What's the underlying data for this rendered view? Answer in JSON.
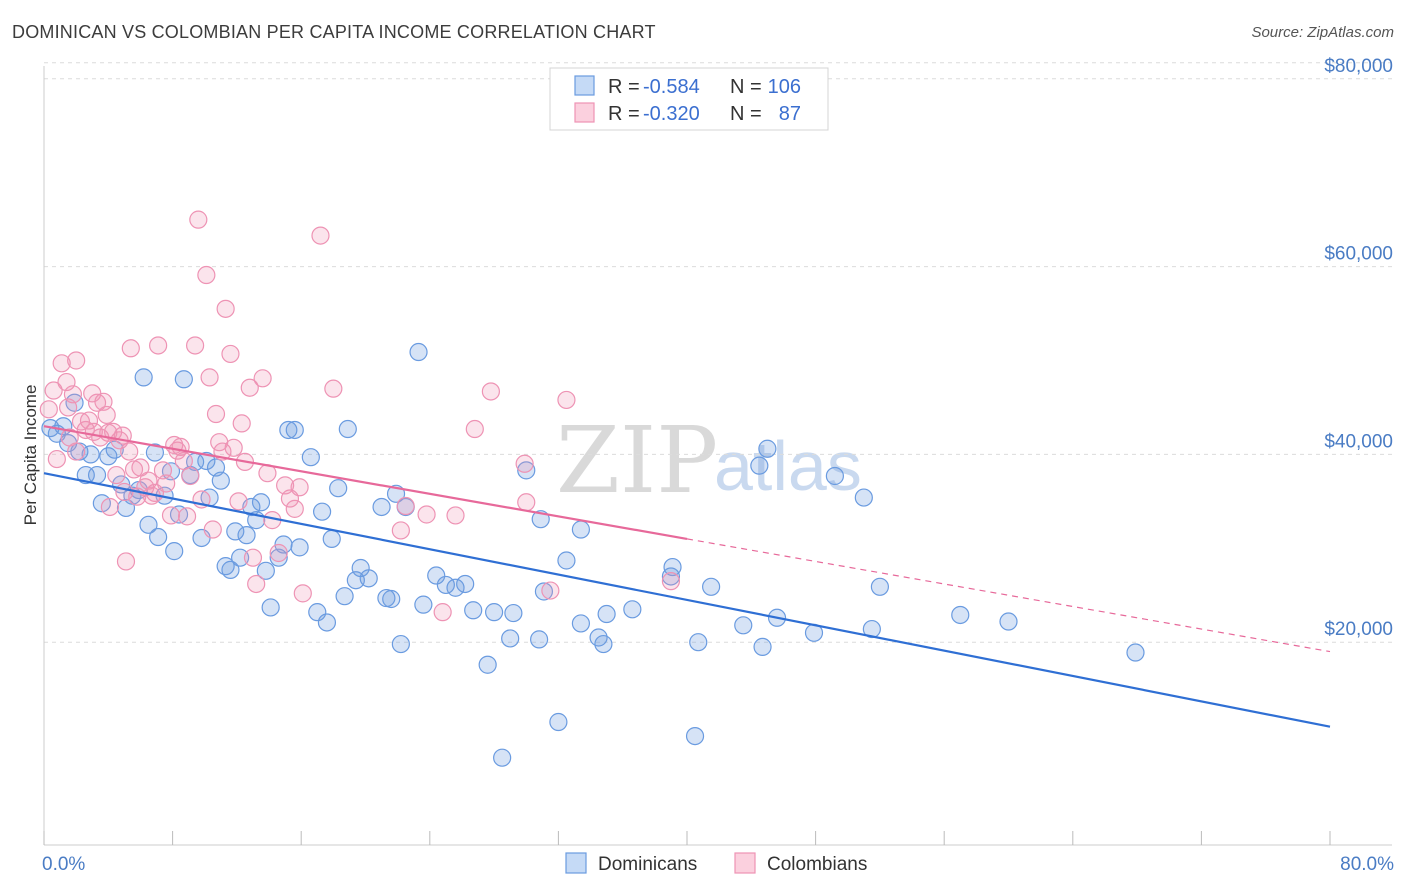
{
  "header": {
    "title": "DOMINICAN VS COLOMBIAN PER CAPITA INCOME CORRELATION CHART",
    "source": "Source: ZipAtlas.com"
  },
  "watermark": {
    "zip": "ZIP",
    "atlas": "atlas"
  },
  "legend": {
    "rows": [
      {
        "r_label": "R = ",
        "r_value": "-0.584",
        "n_label": "N = ",
        "n_value": "106"
      },
      {
        "r_label": "R = ",
        "r_value": "-0.320",
        "n_label": "N = ",
        "n_value": "87"
      }
    ]
  },
  "bottom_legend": {
    "items": [
      "Dominicans",
      "Colombians"
    ]
  },
  "chart_data": {
    "type": "scatter",
    "ylabel": "Per Capita Income",
    "xlim": [
      0,
      80
    ],
    "ylim": [
      0,
      82000
    ],
    "x_tick_labels": {
      "min": "0.0%",
      "max": "80.0%"
    },
    "y_ticks": [
      {
        "value": 20000,
        "label": "$20,000"
      },
      {
        "value": 40000,
        "label": "$40,000"
      },
      {
        "value": 60000,
        "label": "$60,000"
      },
      {
        "value": 80000,
        "label": "$80,000"
      }
    ],
    "grid": true,
    "colors": {
      "dominicans": "#6a9be0",
      "colombians": "#ee93b4",
      "dom_line": "#2f6fd4",
      "col_line": "#e7699a"
    },
    "series": [
      {
        "name": "Dominicans",
        "trend": {
          "x0": 0,
          "y0": 38000,
          "x1": 80,
          "y1": 11000
        },
        "points": [
          [
            0.4,
            42800
          ],
          [
            0.8,
            42200
          ],
          [
            1.2,
            43000
          ],
          [
            1.5,
            41200
          ],
          [
            1.9,
            45500
          ],
          [
            2.2,
            40300
          ],
          [
            2.6,
            37800
          ],
          [
            2.9,
            40000
          ],
          [
            3.3,
            37800
          ],
          [
            3.6,
            34800
          ],
          [
            4.0,
            39800
          ],
          [
            4.4,
            40500
          ],
          [
            4.8,
            36800
          ],
          [
            5.1,
            34300
          ],
          [
            5.5,
            35600
          ],
          [
            5.9,
            36200
          ],
          [
            6.2,
            48200
          ],
          [
            6.5,
            32500
          ],
          [
            6.9,
            40200
          ],
          [
            7.1,
            31200
          ],
          [
            7.5,
            35600
          ],
          [
            7.9,
            38200
          ],
          [
            8.1,
            29700
          ],
          [
            8.4,
            33600
          ],
          [
            8.7,
            48000
          ],
          [
            9.1,
            37800
          ],
          [
            9.4,
            39200
          ],
          [
            9.8,
            31100
          ],
          [
            10.1,
            39300
          ],
          [
            10.3,
            35400
          ],
          [
            10.7,
            38600
          ],
          [
            11.0,
            37200
          ],
          [
            11.3,
            28100
          ],
          [
            11.6,
            27700
          ],
          [
            11.9,
            31800
          ],
          [
            12.2,
            29000
          ],
          [
            12.6,
            31400
          ],
          [
            12.9,
            34400
          ],
          [
            13.2,
            33000
          ],
          [
            13.5,
            34900
          ],
          [
            13.8,
            27600
          ],
          [
            14.1,
            23700
          ],
          [
            14.6,
            29000
          ],
          [
            14.9,
            30400
          ],
          [
            15.2,
            42600
          ],
          [
            15.6,
            42600
          ],
          [
            15.9,
            30100
          ],
          [
            16.6,
            39700
          ],
          [
            17.0,
            23200
          ],
          [
            17.3,
            33900
          ],
          [
            17.6,
            22100
          ],
          [
            17.9,
            31000
          ],
          [
            18.3,
            36400
          ],
          [
            18.7,
            24900
          ],
          [
            18.9,
            42700
          ],
          [
            19.4,
            26600
          ],
          [
            19.7,
            27900
          ],
          [
            20.2,
            26800
          ],
          [
            21.0,
            34400
          ],
          [
            21.3,
            24700
          ],
          [
            21.6,
            24600
          ],
          [
            21.9,
            35800
          ],
          [
            22.2,
            19800
          ],
          [
            22.5,
            34400
          ],
          [
            23.3,
            50900
          ],
          [
            23.6,
            24000
          ],
          [
            24.4,
            27100
          ],
          [
            25.0,
            26100
          ],
          [
            25.6,
            25800
          ],
          [
            26.2,
            26200
          ],
          [
            26.7,
            23400
          ],
          [
            27.6,
            17600
          ],
          [
            28.0,
            23200
          ],
          [
            28.5,
            7700
          ],
          [
            29.0,
            20400
          ],
          [
            29.2,
            23100
          ],
          [
            30.0,
            38300
          ],
          [
            30.8,
            20300
          ],
          [
            30.9,
            33100
          ],
          [
            31.1,
            25400
          ],
          [
            32.0,
            11500
          ],
          [
            32.5,
            28700
          ],
          [
            33.4,
            32000
          ],
          [
            33.4,
            22000
          ],
          [
            34.5,
            20500
          ],
          [
            34.8,
            19800
          ],
          [
            35.0,
            23000
          ],
          [
            36.6,
            23500
          ],
          [
            39.0,
            27000
          ],
          [
            39.1,
            28000
          ],
          [
            40.5,
            10000
          ],
          [
            40.7,
            20000
          ],
          [
            41.5,
            25900
          ],
          [
            43.5,
            21800
          ],
          [
            44.5,
            38800
          ],
          [
            44.7,
            19500
          ],
          [
            45.0,
            40600
          ],
          [
            45.6,
            22600
          ],
          [
            47.9,
            21000
          ],
          [
            49.2,
            37700
          ],
          [
            51.0,
            35400
          ],
          [
            51.5,
            21400
          ],
          [
            52.0,
            25900
          ],
          [
            57.0,
            22900
          ],
          [
            67.9,
            18900
          ],
          [
            60.0,
            22200
          ]
        ]
      },
      {
        "name": "Colombians",
        "trend": {
          "x0": 0,
          "y0": 43000,
          "x1": 40,
          "y1": 31000,
          "x_dash_end": 80,
          "y_dash_end": 19000
        },
        "points": [
          [
            0.3,
            44800
          ],
          [
            0.6,
            46800
          ],
          [
            0.8,
            39500
          ],
          [
            1.1,
            49700
          ],
          [
            1.4,
            47700
          ],
          [
            1.6,
            41800
          ],
          [
            1.8,
            46400
          ],
          [
            2.0,
            50000
          ],
          [
            2.3,
            43500
          ],
          [
            2.6,
            42600
          ],
          [
            2.8,
            43600
          ],
          [
            3.1,
            42400
          ],
          [
            3.3,
            45500
          ],
          [
            3.5,
            41800
          ],
          [
            3.7,
            45600
          ],
          [
            3.9,
            44200
          ],
          [
            4.1,
            34400
          ],
          [
            4.3,
            42400
          ],
          [
            4.5,
            37800
          ],
          [
            4.7,
            41500
          ],
          [
            4.9,
            42000
          ],
          [
            5.1,
            28600
          ],
          [
            5.3,
            40300
          ],
          [
            5.4,
            51300
          ],
          [
            5.6,
            38400
          ],
          [
            5.8,
            35500
          ],
          [
            6.0,
            38600
          ],
          [
            6.3,
            36500
          ],
          [
            6.5,
            37200
          ],
          [
            6.7,
            35600
          ],
          [
            6.9,
            35900
          ],
          [
            7.1,
            51600
          ],
          [
            7.4,
            38300
          ],
          [
            7.6,
            36900
          ],
          [
            7.9,
            33500
          ],
          [
            8.1,
            41000
          ],
          [
            8.3,
            40400
          ],
          [
            8.5,
            40800
          ],
          [
            8.7,
            39300
          ],
          [
            8.9,
            33400
          ],
          [
            9.1,
            37700
          ],
          [
            9.4,
            51600
          ],
          [
            9.6,
            65000
          ],
          [
            9.8,
            35200
          ],
          [
            10.1,
            59100
          ],
          [
            10.3,
            48200
          ],
          [
            10.5,
            32000
          ],
          [
            10.7,
            44300
          ],
          [
            10.9,
            41300
          ],
          [
            11.1,
            40300
          ],
          [
            11.3,
            55500
          ],
          [
            11.6,
            50700
          ],
          [
            11.8,
            40700
          ],
          [
            12.1,
            35000
          ],
          [
            12.3,
            43300
          ],
          [
            12.5,
            39200
          ],
          [
            12.8,
            47100
          ],
          [
            13.0,
            29000
          ],
          [
            13.2,
            26200
          ],
          [
            13.6,
            48100
          ],
          [
            13.9,
            38000
          ],
          [
            14.2,
            33000
          ],
          [
            14.6,
            29500
          ],
          [
            15.0,
            36700
          ],
          [
            15.3,
            35300
          ],
          [
            15.6,
            34200
          ],
          [
            15.9,
            36500
          ],
          [
            16.1,
            25200
          ],
          [
            17.2,
            63300
          ],
          [
            18.0,
            47000
          ],
          [
            22.2,
            31900
          ],
          [
            22.5,
            34500
          ],
          [
            23.8,
            33600
          ],
          [
            24.8,
            23200
          ],
          [
            25.6,
            33500
          ],
          [
            26.8,
            42700
          ],
          [
            27.8,
            46700
          ],
          [
            29.9,
            39000
          ],
          [
            30.0,
            34900
          ],
          [
            31.5,
            25500
          ],
          [
            32.5,
            45800
          ],
          [
            1.5,
            45000
          ],
          [
            2.0,
            40300
          ],
          [
            3.0,
            46500
          ],
          [
            4.0,
            42300
          ],
          [
            5.0,
            36000
          ],
          [
            39.0,
            26500
          ]
        ]
      }
    ]
  }
}
